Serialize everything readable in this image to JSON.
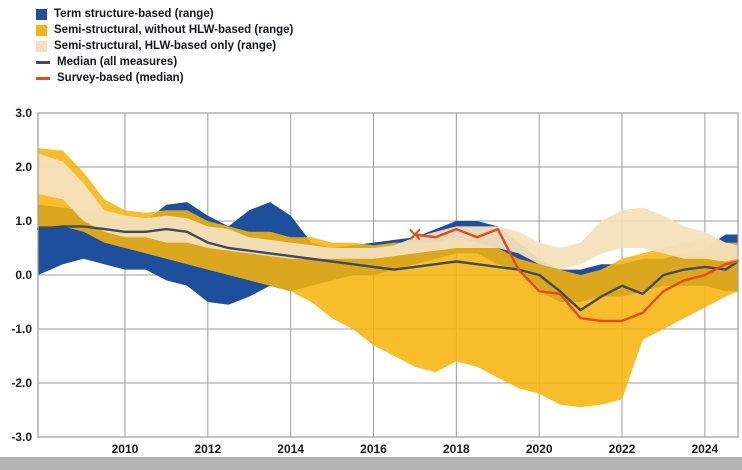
{
  "legend": {
    "items": [
      {
        "label": "Term structure-based (range)",
        "type": "square",
        "color": "#1D4F9C"
      },
      {
        "label": "Semi-structural, without HLW-based (range)",
        "type": "square",
        "color": "#F6B40E"
      },
      {
        "label": "Semi-structural, HLW-based only (range)",
        "type": "square",
        "color": "#F4E0BC"
      },
      {
        "label": "Median (all measures)",
        "type": "line",
        "color": "#3D4C5C"
      },
      {
        "label": "Survey-based (median)",
        "type": "line",
        "color": "#E64A19"
      }
    ]
  },
  "colors": {
    "grid": "#9C9C9C",
    "axis_text": "#1A1A1A",
    "background": "#FFFFFF",
    "bottom_bar": "#B3B3B3"
  },
  "chart_data": {
    "type": "area",
    "title": "",
    "xlabel": "",
    "ylabel": "",
    "grid": true,
    "legend_position": "top-left",
    "xlim": [
      2007.9,
      2024.8
    ],
    "ylim": [
      -3.0,
      3.0
    ],
    "yticks": [
      3.0,
      2.0,
      1.0,
      0.0,
      -1.0,
      -2.0,
      -3.0
    ],
    "ytick_labels": [
      "3.0",
      "2.0",
      "1.0",
      "0.0",
      "-1.0",
      "-2.0",
      "-3.0"
    ],
    "xticks": [
      2010,
      2012,
      2014,
      2016,
      2018,
      2020,
      2022,
      2024
    ],
    "xtick_labels": [
      "2010",
      "2012",
      "2014",
      "2016",
      "2018",
      "2020",
      "2022",
      "2024"
    ],
    "x": [
      2007.9,
      2008.5,
      2009,
      2009.5,
      2010,
      2010.5,
      2011,
      2011.5,
      2012,
      2012.5,
      2013,
      2013.5,
      2014,
      2014.5,
      2015,
      2015.5,
      2016,
      2016.5,
      2017,
      2017.5,
      2018,
      2018.5,
      2019,
      2019.5,
      2020,
      2020.5,
      2021,
      2021.5,
      2022,
      2022.5,
      2023,
      2023.5,
      2024,
      2024.5,
      2024.8
    ],
    "bands": [
      {
        "name": "Term structure-based (range)",
        "color": "#1D4F9C",
        "opacity": 1,
        "upper": [
          1.3,
          1.25,
          1.2,
          1.1,
          1.05,
          1.0,
          1.3,
          1.35,
          1.1,
          0.9,
          1.2,
          1.35,
          1.1,
          0.6,
          0.5,
          0.55,
          0.6,
          0.65,
          0.7,
          0.85,
          1.0,
          1.0,
          0.9,
          0.6,
          0.3,
          0.1,
          0.1,
          0.2,
          0.2,
          0.3,
          0.3,
          0.4,
          0.5,
          0.75,
          0.75
        ],
        "lower": [
          0.0,
          0.2,
          0.3,
          0.2,
          0.1,
          0.1,
          -0.1,
          -0.2,
          -0.5,
          -0.55,
          -0.4,
          -0.2,
          -0.3,
          -0.2,
          -0.1,
          0.0,
          0.0,
          0.1,
          0.2,
          0.3,
          0.4,
          0.4,
          0.2,
          0.1,
          -0.3,
          -0.5,
          -0.5,
          -0.4,
          -0.4,
          -0.3,
          -0.2,
          -0.2,
          -0.2,
          -0.3,
          -0.3
        ]
      },
      {
        "name": "Semi-structural, without HLW-based (range)",
        "color": "#F6B40E",
        "opacity": 0.88,
        "upper": [
          2.35,
          2.3,
          1.9,
          1.4,
          1.2,
          1.15,
          1.2,
          1.2,
          1.0,
          0.9,
          0.8,
          0.8,
          0.7,
          0.7,
          0.6,
          0.6,
          0.55,
          0.6,
          0.6,
          0.6,
          0.7,
          0.6,
          0.5,
          0.3,
          0.2,
          0.1,
          0.0,
          0.1,
          0.3,
          0.4,
          0.5,
          0.6,
          0.7,
          0.6,
          0.6
        ],
        "lower": [
          0.9,
          0.9,
          0.8,
          0.6,
          0.5,
          0.4,
          0.3,
          0.2,
          0.1,
          0.0,
          -0.1,
          -0.2,
          -0.3,
          -0.5,
          -0.8,
          -1.0,
          -1.3,
          -1.5,
          -1.7,
          -1.8,
          -1.6,
          -1.7,
          -1.9,
          -2.1,
          -2.2,
          -2.4,
          -2.45,
          -2.4,
          -2.3,
          -1.2,
          -1.0,
          -0.8,
          -0.6,
          -0.4,
          -0.3
        ]
      },
      {
        "name": "Semi-structural, HLW-based only (range)",
        "color": "#F4E0BC",
        "opacity": 0.95,
        "upper": [
          2.25,
          2.1,
          1.7,
          1.2,
          1.1,
          1.05,
          1.1,
          1.05,
          0.9,
          0.85,
          0.7,
          0.65,
          0.6,
          0.55,
          0.5,
          0.5,
          0.5,
          0.55,
          0.7,
          0.8,
          0.9,
          0.9,
          0.9,
          0.8,
          0.6,
          0.5,
          0.6,
          1.0,
          1.2,
          1.25,
          1.1,
          0.9,
          0.8,
          0.6,
          0.55
        ],
        "lower": [
          1.5,
          1.4,
          1.0,
          0.8,
          0.7,
          0.7,
          0.6,
          0.6,
          0.5,
          0.45,
          0.4,
          0.35,
          0.3,
          0.3,
          0.3,
          0.3,
          0.3,
          0.35,
          0.4,
          0.45,
          0.5,
          0.5,
          0.5,
          0.4,
          0.2,
          0.1,
          0.2,
          0.4,
          0.5,
          0.5,
          0.4,
          0.3,
          0.3,
          0.25,
          0.3
        ]
      }
    ],
    "lines": [
      {
        "name": "Median (all measures)",
        "color": "#3D4C5C",
        "width": 2.4,
        "values": [
          0.85,
          0.9,
          0.9,
          0.85,
          0.8,
          0.8,
          0.85,
          0.8,
          0.6,
          0.5,
          0.45,
          0.4,
          0.35,
          0.3,
          0.25,
          0.2,
          0.15,
          0.1,
          0.15,
          0.2,
          0.25,
          0.2,
          0.15,
          0.1,
          0.0,
          -0.3,
          -0.65,
          -0.4,
          -0.2,
          -0.35,
          0.0,
          0.1,
          0.15,
          0.1,
          0.25
        ]
      },
      {
        "name": "Survey-based (median)",
        "color": "#E64A19",
        "width": 2.4,
        "start_marker": "x",
        "values": [
          null,
          null,
          null,
          null,
          null,
          null,
          null,
          null,
          null,
          null,
          null,
          null,
          null,
          null,
          null,
          null,
          null,
          null,
          0.75,
          0.7,
          0.85,
          0.7,
          0.85,
          0.1,
          -0.3,
          -0.35,
          -0.8,
          -0.85,
          -0.85,
          -0.7,
          -0.3,
          -0.1,
          0.0,
          0.2,
          0.25
        ]
      }
    ]
  }
}
